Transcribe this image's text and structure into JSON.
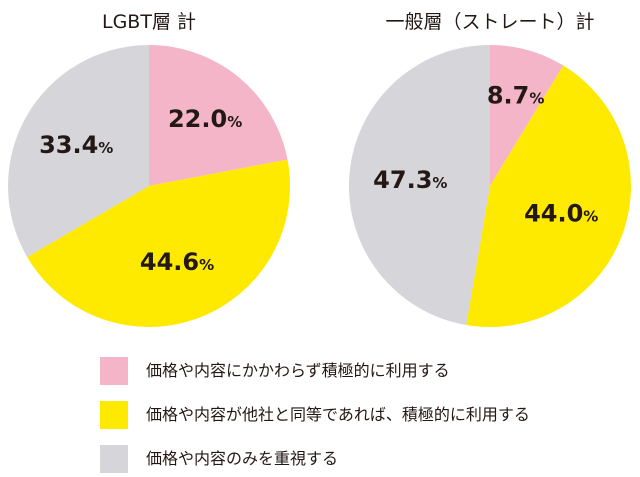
{
  "chart_data": [
    {
      "type": "pie",
      "title": "LGBT層 計",
      "categories": [
        "価格や内容にかかわらず積極的に利用する",
        "価格や内容が他社と同等であれば、積極的に利用する",
        "価格や内容のみを重視する"
      ],
      "values": [
        22.0,
        44.6,
        33.4
      ],
      "value_labels": [
        "22.0",
        "44.6",
        "33.4"
      ],
      "unit": "%",
      "colors": [
        "#f4b5c8",
        "#fdea00",
        "#d6d5d9"
      ],
      "start": "12 o'clock",
      "direction": "clockwise"
    },
    {
      "type": "pie",
      "title": "一般層（ストレート）計",
      "categories": [
        "価格や内容にかかわらず積極的に利用する",
        "価格や内容が他社と同等であれば、積極的に利用する",
        "価格や内容のみを重視する"
      ],
      "values": [
        8.7,
        44.0,
        47.3
      ],
      "value_labels": [
        "8.7",
        "44.0",
        "47.3"
      ],
      "unit": "%",
      "colors": [
        "#f4b5c8",
        "#fdea00",
        "#d6d5d9"
      ],
      "start": "12 o'clock",
      "direction": "clockwise"
    }
  ],
  "legend": {
    "placement": "bottom",
    "items": [
      {
        "label": "価格や内容にかかわらず積極的に利用する",
        "color": "#f4b5c8"
      },
      {
        "label": "価格や内容が他社と同等であれば、積極的に利用する",
        "color": "#fdea00"
      },
      {
        "label": "価格や内容のみを重視する",
        "color": "#d6d5d9"
      }
    ]
  }
}
